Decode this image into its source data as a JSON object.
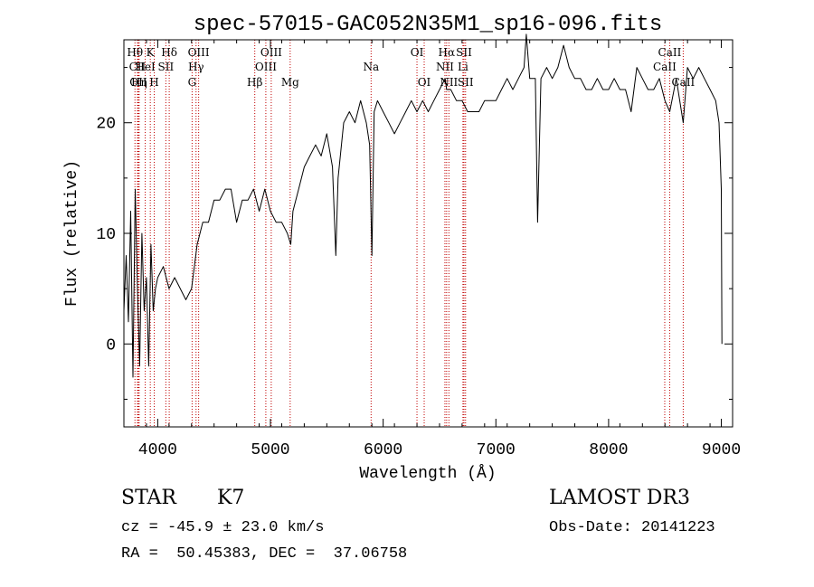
{
  "chart_data": {
    "type": "line",
    "title": "spec-57015-GAC052N35M1_sp16-096.fits",
    "xlabel": "Wavelength (Å)",
    "ylabel": "Flux (relative)",
    "xlim": [
      3700,
      9100
    ],
    "ylim": [
      -7.5,
      27.5
    ],
    "xticks": [
      4000,
      5000,
      6000,
      7000,
      8000,
      9000
    ],
    "yticks": [
      0,
      10,
      20
    ],
    "series": [
      {
        "name": "spectrum",
        "x": [
          3700,
          3720,
          3740,
          3760,
          3780,
          3800,
          3820,
          3840,
          3860,
          3880,
          3900,
          3920,
          3940,
          3960,
          3980,
          4000,
          4050,
          4100,
          4150,
          4200,
          4250,
          4300,
          4350,
          4400,
          4450,
          4500,
          4550,
          4600,
          4650,
          4700,
          4750,
          4800,
          4850,
          4900,
          4950,
          5000,
          5050,
          5100,
          5150,
          5180,
          5200,
          5250,
          5300,
          5350,
          5400,
          5450,
          5500,
          5550,
          5580,
          5600,
          5650,
          5700,
          5750,
          5800,
          5850,
          5880,
          5900,
          5920,
          5950,
          6000,
          6050,
          6100,
          6150,
          6200,
          6250,
          6300,
          6350,
          6400,
          6450,
          6500,
          6550,
          6563,
          6600,
          6650,
          6700,
          6750,
          6800,
          6850,
          6900,
          6950,
          7000,
          7050,
          7100,
          7150,
          7200,
          7250,
          7270,
          7300,
          7350,
          7370,
          7400,
          7450,
          7500,
          7550,
          7600,
          7650,
          7700,
          7750,
          7800,
          7850,
          7900,
          7950,
          8000,
          8050,
          8100,
          8150,
          8200,
          8250,
          8300,
          8350,
          8400,
          8450,
          8500,
          8542,
          8600,
          8662,
          8700,
          8750,
          8800,
          8850,
          8900,
          8950,
          8980,
          9000,
          9005
        ],
        "y": [
          3,
          8,
          2,
          12,
          -3,
          14,
          5,
          -2,
          10,
          3,
          6,
          -2,
          9,
          3,
          5,
          6,
          7,
          5,
          6,
          5,
          4,
          5,
          9,
          11,
          11,
          13,
          13,
          14,
          14,
          11,
          13,
          13,
          14,
          12,
          14,
          12,
          11,
          11,
          10,
          9,
          12,
          14,
          16,
          17,
          18,
          17,
          19,
          16,
          8,
          15,
          20,
          21,
          20,
          22,
          20,
          18,
          8,
          21,
          22,
          21,
          20,
          19,
          20,
          21,
          22,
          21,
          22,
          21,
          22,
          23,
          24,
          23,
          23,
          22,
          22,
          21,
          21,
          21,
          22,
          22,
          22,
          23,
          24,
          23,
          24,
          25,
          28,
          24,
          24,
          11,
          24,
          25,
          24,
          25,
          27,
          25,
          24,
          24,
          23,
          23,
          24,
          23,
          23,
          24,
          23,
          23,
          21,
          25,
          24,
          23,
          23,
          24,
          22,
          21,
          24,
          20,
          25,
          24,
          25,
          24,
          23,
          22,
          20,
          14,
          0
        ]
      }
    ],
    "line_markers": [
      {
        "label": "Hθ",
        "wavelength": 3798,
        "row": 1
      },
      {
        "label": "CII",
        "wavelength": 3820,
        "row": 2
      },
      {
        "label": "OII",
        "wavelength": 3828,
        "row": 3
      },
      {
        "label": "Hη",
        "wavelength": 3835,
        "row": 3
      },
      {
        "label": "K",
        "wavelength": 3934,
        "row": 1
      },
      {
        "label": "HeI",
        "wavelength": 3889,
        "row": 2
      },
      {
        "label": "H",
        "wavelength": 3969,
        "row": 3
      },
      {
        "label": "Hδ",
        "wavelength": 4102,
        "row": 1
      },
      {
        "label": "SII",
        "wavelength": 4072,
        "row": 2
      },
      {
        "label": "OIII",
        "wavelength": 4363,
        "row": 1
      },
      {
        "label": "Hγ",
        "wavelength": 4340,
        "row": 2
      },
      {
        "label": "G",
        "wavelength": 4305,
        "row": 3
      },
      {
        "label": "Hβ",
        "wavelength": 4861,
        "row": 3
      },
      {
        "label": "OIII",
        "wavelength": 4959,
        "row": 2
      },
      {
        "label": "OIII",
        "wavelength": 5007,
        "row": 1
      },
      {
        "label": "Mg",
        "wavelength": 5175,
        "row": 3
      },
      {
        "label": "Na",
        "wavelength": 5893,
        "row": 2
      },
      {
        "label": "OI",
        "wavelength": 6300,
        "row": 1
      },
      {
        "label": "OI",
        "wavelength": 6364,
        "row": 3
      },
      {
        "label": "Hα",
        "wavelength": 6563,
        "row": 1
      },
      {
        "label": "NII",
        "wavelength": 6548,
        "row": 2
      },
      {
        "label": "NII",
        "wavelength": 6583,
        "row": 3
      },
      {
        "label": "SII",
        "wavelength": 6717,
        "row": 1
      },
      {
        "label": "Li",
        "wavelength": 6708,
        "row": 2
      },
      {
        "label": "SII",
        "wavelength": 6731,
        "row": 3
      },
      {
        "label": "CaII",
        "wavelength": 8542,
        "row": 1
      },
      {
        "label": "CaII",
        "wavelength": 8498,
        "row": 2
      },
      {
        "label": "CaII",
        "wavelength": 8662,
        "row": 3
      }
    ]
  },
  "info": {
    "object_class": "STAR",
    "subclass": "K7",
    "survey": "LAMOST DR3",
    "redshift": "cz = -45.9 ± 23.0 km/s",
    "obs_date": "Obs-Date: 20141223",
    "coords": "RA =  50.45383, DEC =  37.06758"
  }
}
